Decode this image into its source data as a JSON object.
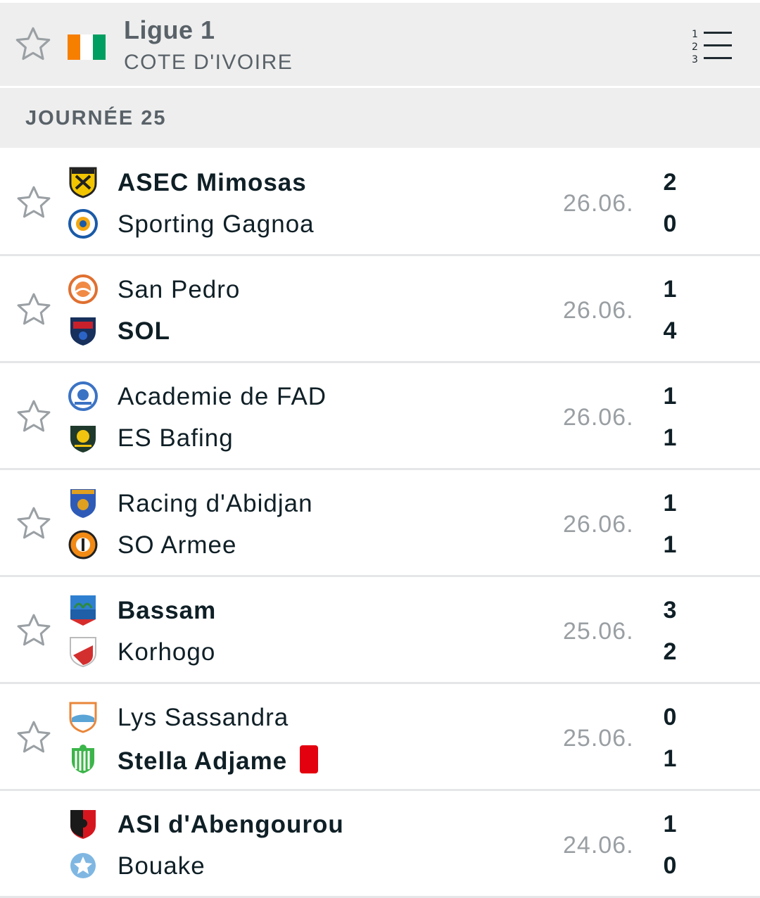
{
  "league": {
    "name": "Ligue 1",
    "country": "COTE D'IVOIRE",
    "flag_colors": [
      "#f77f00",
      "#ffffff",
      "#009e60"
    ]
  },
  "round": {
    "label": "JOURNÉE 25"
  },
  "matches": [
    {
      "home": "ASEC Mimosas",
      "away": "Sporting Gagnoa",
      "date": "26.06.",
      "home_score": "2",
      "away_score": "0",
      "winner": "home",
      "away_red_card": false,
      "has_star": true
    },
    {
      "home": "San Pedro",
      "away": "SOL",
      "date": "26.06.",
      "home_score": "1",
      "away_score": "4",
      "winner": "away",
      "away_red_card": false,
      "has_star": true
    },
    {
      "home": "Academie de FAD",
      "away": "ES Bafing",
      "date": "26.06.",
      "home_score": "1",
      "away_score": "1",
      "winner": "none",
      "away_red_card": false,
      "has_star": true
    },
    {
      "home": "Racing d'Abidjan",
      "away": "SO Armee",
      "date": "26.06.",
      "home_score": "1",
      "away_score": "1",
      "winner": "none",
      "away_red_card": false,
      "has_star": true
    },
    {
      "home": "Bassam",
      "away": "Korhogo",
      "date": "25.06.",
      "home_score": "3",
      "away_score": "2",
      "winner": "home",
      "away_red_card": false,
      "has_star": true
    },
    {
      "home": "Lys Sassandra",
      "away": "Stella Adjame",
      "date": "25.06.",
      "home_score": "0",
      "away_score": "1",
      "winner": "away",
      "away_red_card": true,
      "has_star": true
    },
    {
      "home": "ASI d'Abengourou",
      "away": "Bouake",
      "date": "24.06.",
      "home_score": "1",
      "away_score": "0",
      "winner": "home",
      "away_red_card": false,
      "has_star": false
    }
  ],
  "icons": {
    "favorite": "star-outline-icon",
    "standings": "standings-list-icon",
    "red_card": "red-card-icon"
  }
}
